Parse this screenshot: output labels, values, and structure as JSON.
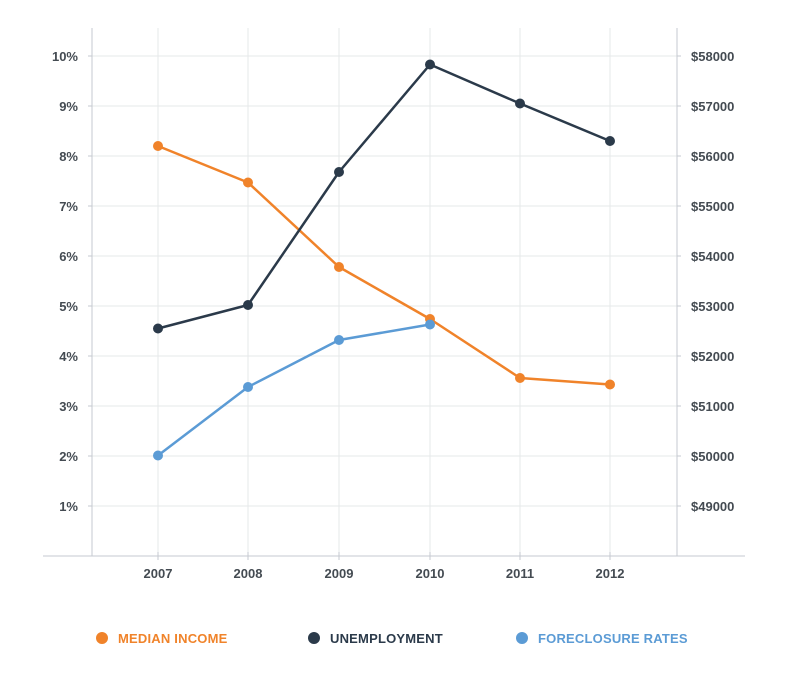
{
  "chart_data": {
    "type": "line",
    "categories": [
      "2007",
      "2008",
      "2009",
      "2010",
      "2011",
      "2012"
    ],
    "y_left": {
      "ticks": [
        "1%",
        "2%",
        "3%",
        "4%",
        "5%",
        "6%",
        "7%",
        "8%",
        "9%",
        "10%"
      ],
      "range": [
        0,
        10
      ]
    },
    "y_right": {
      "ticks": [
        "$49000",
        "$50000",
        "$51000",
        "$52000",
        "$53000",
        "$54000",
        "$55000",
        "$56000",
        "$57000",
        "$58000"
      ],
      "range": [
        48000,
        58000
      ]
    },
    "series": [
      {
        "name": "MEDIAN INCOME",
        "axis": "right",
        "color": "#f0832a",
        "values": [
          56200,
          55470,
          53780,
          52740,
          51560,
          51430
        ]
      },
      {
        "name": "UNEMPLOYMENT",
        "axis": "left",
        "color": "#2b3a4a",
        "values": [
          4.55,
          5.02,
          7.68,
          9.83,
          9.05,
          8.3
        ]
      },
      {
        "name": "FORECLOSURE RATES",
        "axis": "left",
        "color": "#5b9bd5",
        "values": [
          2.01,
          3.38,
          4.32,
          4.63,
          null,
          null
        ]
      }
    ],
    "grid": true,
    "legend_position": "bottom"
  }
}
